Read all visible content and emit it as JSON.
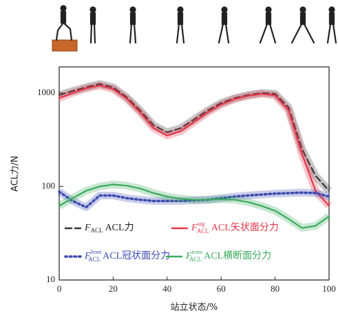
{
  "chart_data": {
    "type": "line",
    "log_y": true,
    "xlabel": "站立状态/%",
    "ylabel": "ACL力/N",
    "xlim": [
      0,
      100
    ],
    "ylim": [
      10,
      1900
    ],
    "xticks": [
      0,
      20,
      40,
      60,
      80,
      100
    ],
    "yticks": [
      10,
      100,
      1000
    ],
    "x": [
      0,
      5,
      10,
      15,
      20,
      25,
      30,
      35,
      40,
      45,
      50,
      55,
      60,
      65,
      70,
      75,
      80,
      85,
      90,
      95,
      100
    ],
    "series": [
      {
        "name": "ACL力",
        "symbol": "F",
        "subscript": "ACL",
        "color": "#333333",
        "style": "dashed",
        "values": [
          950,
          1050,
          1150,
          1250,
          1150,
          900,
          650,
          450,
          380,
          420,
          520,
          650,
          780,
          880,
          950,
          1000,
          980,
          700,
          250,
          130,
          90
        ]
      },
      {
        "name": "ACL矢状面分力",
        "symbol": "F",
        "subscript": "ACL",
        "superscript": "sag",
        "color": "#e8374a",
        "style": "solid",
        "values": [
          880,
          1000,
          1120,
          1200,
          1100,
          870,
          620,
          420,
          350,
          390,
          490,
          620,
          750,
          860,
          930,
          980,
          940,
          650,
          220,
          90,
          62
        ]
      },
      {
        "name": "ACL冠状面分力",
        "symbol": "F",
        "subscript": "ACL",
        "superscript": "front",
        "color": "#3c4bb0",
        "style": "dotted",
        "values": [
          88,
          70,
          60,
          80,
          80,
          75,
          72,
          70,
          70,
          70,
          71,
          72,
          75,
          78,
          80,
          82,
          84,
          85,
          86,
          85,
          78
        ]
      },
      {
        "name": "ACL横断面分力",
        "symbol": "F",
        "subscript": "ACL",
        "superscript": "trans",
        "color": "#3aaa5c",
        "style": "solid",
        "values": [
          62,
          75,
          90,
          100,
          105,
          102,
          95,
          85,
          78,
          74,
          72,
          72,
          73,
          72,
          68,
          62,
          55,
          45,
          36,
          38,
          48
        ]
      }
    ]
  }
}
